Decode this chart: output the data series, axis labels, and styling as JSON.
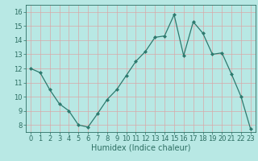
{
  "x": [
    0,
    1,
    2,
    3,
    4,
    5,
    6,
    7,
    8,
    9,
    10,
    11,
    12,
    13,
    14,
    15,
    16,
    17,
    18,
    19,
    20,
    21,
    22,
    23
  ],
  "y": [
    12,
    11.7,
    10.5,
    9.5,
    9.0,
    8.0,
    7.85,
    8.8,
    9.8,
    10.5,
    11.5,
    12.5,
    13.2,
    14.2,
    14.3,
    15.8,
    12.9,
    15.3,
    14.5,
    13.0,
    13.1,
    11.6,
    10.0,
    7.7
  ],
  "line_color": "#2d7a6e",
  "marker": "D",
  "marker_size": 2.0,
  "bg_color": "#b8e8e4",
  "grid_color": "#d8a8a8",
  "xlabel": "Humidex (Indice chaleur)",
  "ylim": [
    7.5,
    16.5
  ],
  "xlim": [
    -0.5,
    23.5
  ],
  "yticks": [
    8,
    9,
    10,
    11,
    12,
    13,
    14,
    15,
    16
  ],
  "xticks": [
    0,
    1,
    2,
    3,
    4,
    5,
    6,
    7,
    8,
    9,
    10,
    11,
    12,
    13,
    14,
    15,
    16,
    17,
    18,
    19,
    20,
    21,
    22,
    23
  ],
  "tick_fontsize": 6.0,
  "xlabel_fontsize": 7.0,
  "label_color": "#2d6e62",
  "spine_color": "#2d6e62",
  "linewidth": 0.9
}
